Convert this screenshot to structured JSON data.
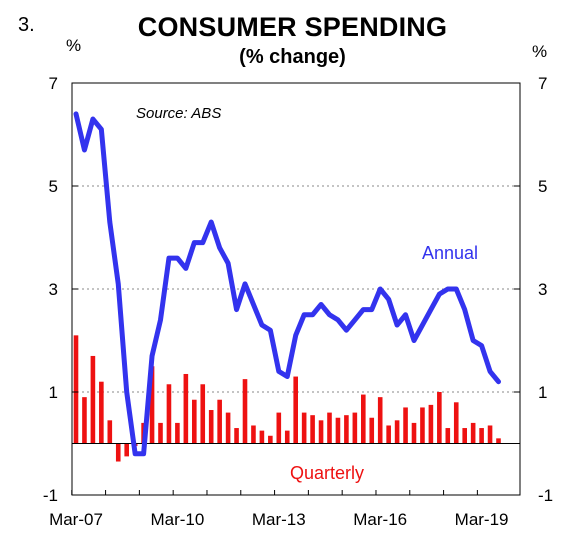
{
  "figure_number": "3.",
  "chart_data": {
    "type": "bar+line",
    "title": "CONSUMER SPENDING",
    "subtitle": "(% change)",
    "unit_left": "%",
    "unit_right": "%",
    "source": "Source: ABS",
    "ylim": [
      -1,
      7
    ],
    "yticks": [
      -1,
      1,
      3,
      5,
      7
    ],
    "ytick_labels": [
      "-1",
      "1",
      "3",
      "5",
      "7"
    ],
    "xtick_labels": [
      "Mar-07",
      "Mar-10",
      "Mar-13",
      "Mar-16",
      "Mar-19"
    ],
    "x_range": [
      "Mar-07",
      "Sep-19"
    ],
    "grid": "horizontal dotted",
    "colors": {
      "annual": "#3333ee",
      "quarterly": "#ee1111"
    },
    "series": [
      {
        "name": "Annual",
        "type": "line",
        "values": [
          6.4,
          5.7,
          6.3,
          6.1,
          4.3,
          3.1,
          1.0,
          -0.2,
          -0.2,
          1.7,
          2.4,
          3.6,
          3.6,
          3.4,
          3.9,
          3.9,
          4.3,
          3.8,
          3.5,
          2.6,
          3.1,
          2.7,
          2.3,
          2.2,
          1.4,
          1.3,
          2.1,
          2.5,
          2.5,
          2.7,
          2.5,
          2.4,
          2.2,
          2.4,
          2.6,
          2.6,
          3.0,
          2.8,
          2.3,
          2.5,
          2.0,
          2.3,
          2.6,
          2.9,
          3.0,
          3.0,
          2.6,
          2.0,
          1.9,
          1.4,
          1.2
        ]
      },
      {
        "name": "Quarterly",
        "type": "bar",
        "values": [
          2.1,
          0.9,
          1.7,
          1.2,
          0.45,
          -0.35,
          -0.25,
          -0.05,
          0.4,
          1.5,
          0.4,
          1.15,
          0.4,
          1.35,
          0.85,
          1.15,
          0.65,
          0.85,
          0.6,
          0.3,
          1.25,
          0.35,
          0.25,
          0.15,
          0.6,
          0.25,
          1.3,
          0.6,
          0.55,
          0.45,
          0.6,
          0.5,
          0.55,
          0.6,
          0.95,
          0.5,
          0.9,
          0.35,
          0.45,
          0.7,
          0.4,
          0.7,
          0.75,
          1.0,
          0.3,
          0.8,
          0.3,
          0.4,
          0.3,
          0.35,
          0.1
        ]
      }
    ],
    "annotations": [
      "Annual",
      "Quarterly"
    ]
  }
}
